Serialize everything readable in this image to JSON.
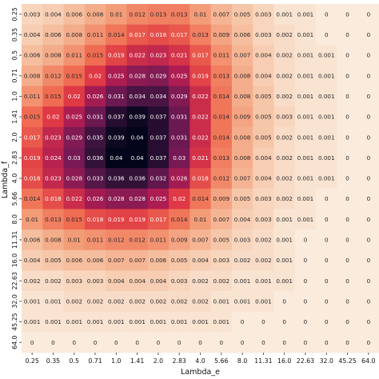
{
  "chart_data": {
    "type": "heatmap",
    "title": "",
    "xlabel": "Lambda_e",
    "ylabel": "Lambda_f",
    "x": [
      "0.25",
      "0.35",
      "0.5",
      "0.71",
      "1.0",
      "1.41",
      "2.0",
      "2.83",
      "4.0",
      "5.66",
      "8.0",
      "11.31",
      "16.0",
      "22.63",
      "32.0",
      "45.25",
      "64.0"
    ],
    "y": [
      "0.25",
      "0.35",
      "0.5",
      "0.71",
      "1.0",
      "1.41",
      "2.0",
      "2.83",
      "4.0",
      "5.66",
      "8.0",
      "11.31",
      "16.0",
      "22.63",
      "32.0",
      "45.25",
      "64.0"
    ],
    "values": [
      [
        0.003,
        0.004,
        0.006,
        0.008,
        0.01,
        0.012,
        0.013,
        0.013,
        0.01,
        0.007,
        0.005,
        0.003,
        0.001,
        0.001,
        0,
        0,
        0
      ],
      [
        0.004,
        0.006,
        0.008,
        0.011,
        0.014,
        0.017,
        0.018,
        0.017,
        0.013,
        0.009,
        0.006,
        0.003,
        0.002,
        0.001,
        0,
        0,
        0
      ],
      [
        0.006,
        0.008,
        0.011,
        0.015,
        0.019,
        0.022,
        0.023,
        0.021,
        0.017,
        0.011,
        0.007,
        0.004,
        0.002,
        0.001,
        0.001,
        0,
        0
      ],
      [
        0.008,
        0.012,
        0.015,
        0.02,
        0.025,
        0.028,
        0.029,
        0.025,
        0.019,
        0.013,
        0.008,
        0.004,
        0.002,
        0.001,
        0.001,
        0,
        0
      ],
      [
        0.011,
        0.015,
        0.02,
        0.026,
        0.031,
        0.034,
        0.034,
        0.029,
        0.022,
        0.014,
        0.008,
        0.005,
        0.002,
        0.001,
        0.001,
        0,
        0
      ],
      [
        0.015,
        0.02,
        0.025,
        0.031,
        0.037,
        0.039,
        0.037,
        0.031,
        0.022,
        0.014,
        0.009,
        0.005,
        0.003,
        0.001,
        0.001,
        0,
        0
      ],
      [
        0.017,
        0.023,
        0.029,
        0.035,
        0.039,
        0.04,
        0.037,
        0.031,
        0.022,
        0.014,
        0.008,
        0.005,
        0.002,
        0.001,
        0.001,
        0,
        0
      ],
      [
        0.019,
        0.024,
        0.03,
        0.036,
        0.04,
        0.04,
        0.037,
        0.03,
        0.021,
        0.013,
        0.008,
        0.004,
        0.002,
        0.001,
        0.001,
        0,
        0
      ],
      [
        0.018,
        0.023,
        0.028,
        0.033,
        0.036,
        0.036,
        0.032,
        0.026,
        0.018,
        0.012,
        0.007,
        0.004,
        0.002,
        0.001,
        0.001,
        0,
        0
      ],
      [
        0.014,
        0.018,
        0.022,
        0.026,
        0.028,
        0.028,
        0.025,
        0.02,
        0.014,
        0.009,
        0.005,
        0.003,
        0.002,
        0.001,
        0,
        0,
        0
      ],
      [
        0.01,
        0.013,
        0.015,
        0.018,
        0.019,
        0.019,
        0.017,
        0.014,
        0.01,
        0.007,
        0.004,
        0.003,
        0.001,
        0.001,
        0,
        0,
        0
      ],
      [
        0.006,
        0.008,
        0.01,
        0.011,
        0.012,
        0.012,
        0.011,
        0.009,
        0.007,
        0.005,
        0.003,
        0.002,
        0.001,
        0,
        0,
        0,
        0
      ],
      [
        0.004,
        0.005,
        0.006,
        0.006,
        0.007,
        0.007,
        0.006,
        0.005,
        0.004,
        0.003,
        0.002,
        0.002,
        0.001,
        0,
        0,
        0,
        0
      ],
      [
        0.002,
        0.002,
        0.003,
        0.003,
        0.004,
        0.004,
        0.004,
        0.003,
        0.002,
        0.002,
        0.001,
        0.001,
        0.001,
        0,
        0,
        0,
        0
      ],
      [
        0.001,
        0.001,
        0.002,
        0.002,
        0.002,
        0.002,
        0.002,
        0.002,
        0.002,
        0.001,
        0.001,
        0.001,
        0,
        0,
        0,
        0,
        0
      ],
      [
        0.001,
        0.001,
        0.001,
        0.001,
        0.001,
        0.001,
        0.001,
        0.001,
        0.001,
        0.001,
        0,
        0,
        0,
        0,
        0,
        0,
        0
      ],
      [
        0,
        0,
        0,
        0,
        0,
        0,
        0,
        0,
        0,
        0,
        0,
        0,
        0,
        0,
        0,
        0,
        0
      ]
    ],
    "value_range": [
      0,
      0.04
    ],
    "colormap": "rocket_r",
    "colorbar": false,
    "annotated": true,
    "grid": false
  }
}
